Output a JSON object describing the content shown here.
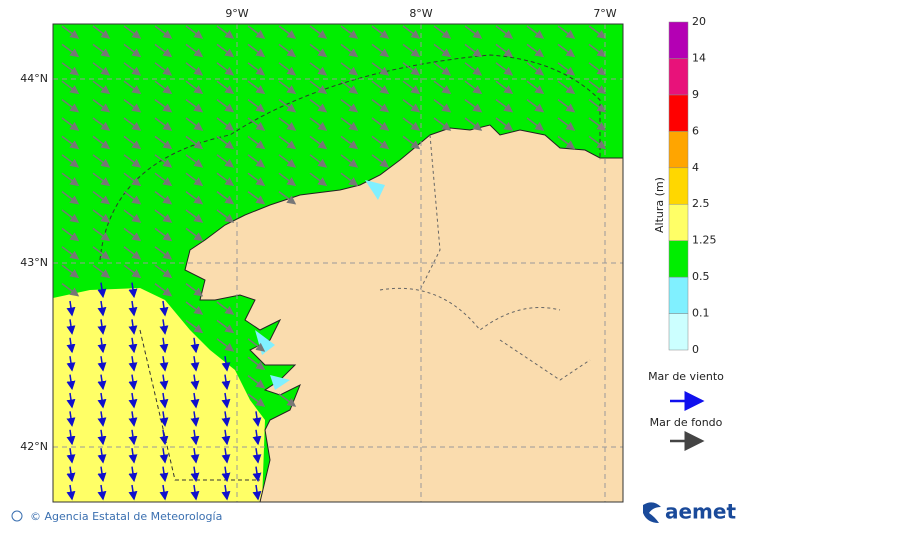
{
  "map": {
    "lon_labels": [
      "9°W",
      "8°W",
      "7°W"
    ],
    "lat_labels": [
      "44°N",
      "43°N",
      "42°N"
    ]
  },
  "colorbar": {
    "title": "Altura (m)",
    "levels": [
      0,
      0.1,
      0.5,
      1.25,
      2.5,
      4,
      6,
      9,
      14,
      20
    ],
    "colors": [
      "#ccffff",
      "#80f0ff",
      "#00ee00",
      "#ffff66",
      "#ffd700",
      "#ffa500",
      "#ff0000",
      "#e8127a",
      "#b400b4"
    ]
  },
  "legend": {
    "wind_sea": "Mar de viento",
    "swell": "Mar de fondo"
  },
  "footer": {
    "credit": "© Agencia Estatal de Meteorología",
    "logo": "aemet"
  }
}
